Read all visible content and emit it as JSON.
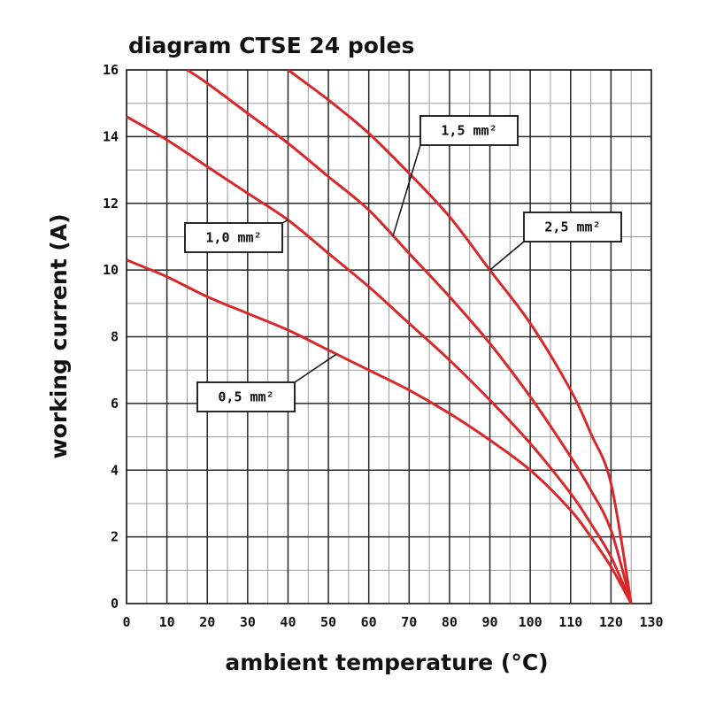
{
  "chart_data": {
    "type": "line",
    "title": "diagram CTSE 24 poles",
    "xlabel": "ambient temperature (°C)",
    "ylabel": "working current (A)",
    "xlim": [
      0,
      130
    ],
    "ylim": [
      0,
      16
    ],
    "xticks": [
      0,
      10,
      20,
      30,
      40,
      50,
      60,
      70,
      80,
      90,
      100,
      110,
      120,
      130
    ],
    "yticks": [
      0,
      2,
      4,
      6,
      8,
      10,
      12,
      14,
      16
    ],
    "x_minor_step": 5,
    "y_minor_step": 1,
    "grid": true,
    "line_color": "#d8282c",
    "series": [
      {
        "name": "0,5 mm²",
        "x": [
          0,
          10,
          20,
          30,
          40,
          50,
          60,
          70,
          80,
          90,
          100,
          110,
          115,
          120,
          125
        ],
        "y": [
          10.3,
          9.8,
          9.2,
          8.7,
          8.2,
          7.6,
          7.0,
          6.4,
          5.7,
          4.9,
          4.0,
          2.8,
          2.0,
          1.1,
          0
        ]
      },
      {
        "name": "1,0 mm²",
        "x": [
          0,
          10,
          20,
          30,
          40,
          50,
          60,
          70,
          80,
          90,
          100,
          110,
          115,
          120,
          125
        ],
        "y": [
          14.6,
          13.9,
          13.1,
          12.3,
          11.5,
          10.5,
          9.5,
          8.4,
          7.3,
          6.1,
          4.8,
          3.3,
          2.4,
          1.4,
          0
        ]
      },
      {
        "name": "1,5 mm²",
        "x": [
          15,
          20,
          30,
          40,
          50,
          60,
          70,
          80,
          90,
          100,
          110,
          115,
          120,
          125
        ],
        "y": [
          16.0,
          15.6,
          14.7,
          13.8,
          12.8,
          11.8,
          10.5,
          9.2,
          7.8,
          6.2,
          4.4,
          3.4,
          2.2,
          0
        ]
      },
      {
        "name": "2,5 mm²",
        "x": [
          40,
          50,
          60,
          70,
          80,
          90,
          100,
          110,
          115,
          120,
          125
        ],
        "y": [
          16.0,
          15.1,
          14.1,
          12.9,
          11.6,
          10.0,
          8.4,
          6.4,
          5.1,
          3.6,
          0
        ]
      }
    ],
    "annotations": [
      {
        "text": "1,5 mm²",
        "series": "1,5 mm²",
        "at_x": 66
      },
      {
        "text": "1,0 mm²",
        "series": "1,0 mm²",
        "at_x": 40
      },
      {
        "text": "2,5 mm²",
        "series": "2,5 mm²",
        "at_x": 90
      },
      {
        "text": "0,5 mm²",
        "series": "0,5 mm²",
        "at_x": 52
      }
    ]
  }
}
